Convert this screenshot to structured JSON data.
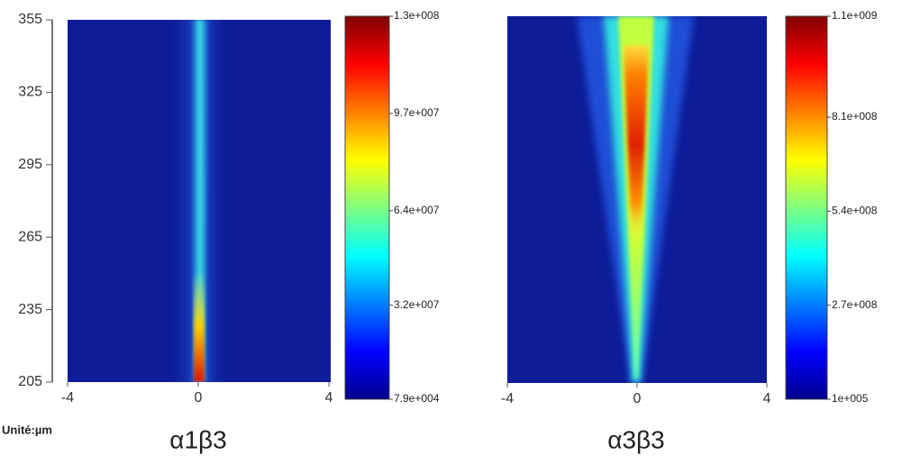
{
  "chart_data": [
    {
      "type": "heatmap",
      "title": "α1β3",
      "unit_label": "Unité:µm",
      "xlim": [
        -4,
        4
      ],
      "xticks": [
        -4,
        0,
        4
      ],
      "ylim": [
        205,
        355
      ],
      "yticks": [
        205,
        235,
        265,
        295,
        325,
        355
      ],
      "clim": [
        79000,
        130000000
      ],
      "cticks": [
        {
          "value": 130000000,
          "label": "1.3e+008"
        },
        {
          "value": 97000000,
          "label": "9.7e+007"
        },
        {
          "value": 64000000,
          "label": "6.4e+007"
        },
        {
          "value": 32000000,
          "label": "3.2e+007"
        },
        {
          "value": 79000,
          "label": "7.9e+004"
        }
      ]
    },
    {
      "type": "heatmap",
      "title": "α3β3",
      "xlim": [
        -4,
        4
      ],
      "xticks": [
        -4,
        0,
        4
      ],
      "clim": [
        100000,
        1100000000
      ],
      "cticks": [
        {
          "value": 1100000000,
          "label": "1.1e+009"
        },
        {
          "value": 810000000,
          "label": "8.1e+008"
        },
        {
          "value": 540000000,
          "label": "5.4e+008"
        },
        {
          "value": 270000000,
          "label": "2.7e+008"
        },
        {
          "value": 100000,
          "label": "1e+005"
        }
      ]
    }
  ]
}
